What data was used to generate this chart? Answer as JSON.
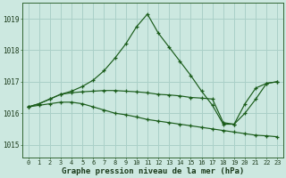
{
  "title": "Graphe pression niveau de la mer (hPa)",
  "background_color": "#cce8e0",
  "grid_color": "#aad0c8",
  "line_color": "#1a5c1a",
  "x_labels": [
    "0",
    "1",
    "2",
    "3",
    "4",
    "5",
    "6",
    "7",
    "8",
    "9",
    "10",
    "11",
    "12",
    "13",
    "14",
    "15",
    "16",
    "17",
    "18",
    "19",
    "20",
    "21",
    "22",
    "23"
  ],
  "ylim": [
    1014.6,
    1019.5
  ],
  "yticks": [
    1015,
    1016,
    1017,
    1018,
    1019
  ],
  "series_main": [
    1016.2,
    1016.3,
    1016.45,
    1016.6,
    1016.7,
    1016.85,
    1017.05,
    1017.35,
    1017.75,
    1018.2,
    1018.75,
    1019.15,
    1018.55,
    1018.1,
    1017.65,
    1017.2,
    1016.7,
    1016.25,
    1015.65,
    1015.65,
    1016.3,
    1016.8,
    1016.95,
    1017.0
  ],
  "series_flat": [
    1016.2,
    1016.25,
    1016.3,
    1016.35,
    1016.35,
    1016.3,
    1016.2,
    1016.1,
    1016.0,
    1015.95,
    1015.88,
    1015.8,
    1015.75,
    1015.7,
    1015.65,
    1015.6,
    1015.55,
    1015.5,
    1015.45,
    1015.4,
    1015.35,
    1015.3,
    1015.28,
    1015.25
  ],
  "series_mid": [
    1016.2,
    1016.3,
    1016.45,
    1016.6,
    1016.65,
    1016.68,
    1016.7,
    1016.72,
    1016.72,
    1016.7,
    1016.68,
    1016.65,
    1016.6,
    1016.58,
    1016.55,
    1016.5,
    1016.48,
    1016.45,
    1015.7,
    1015.65,
    1016.0,
    1016.45,
    1016.95,
    1017.0
  ]
}
